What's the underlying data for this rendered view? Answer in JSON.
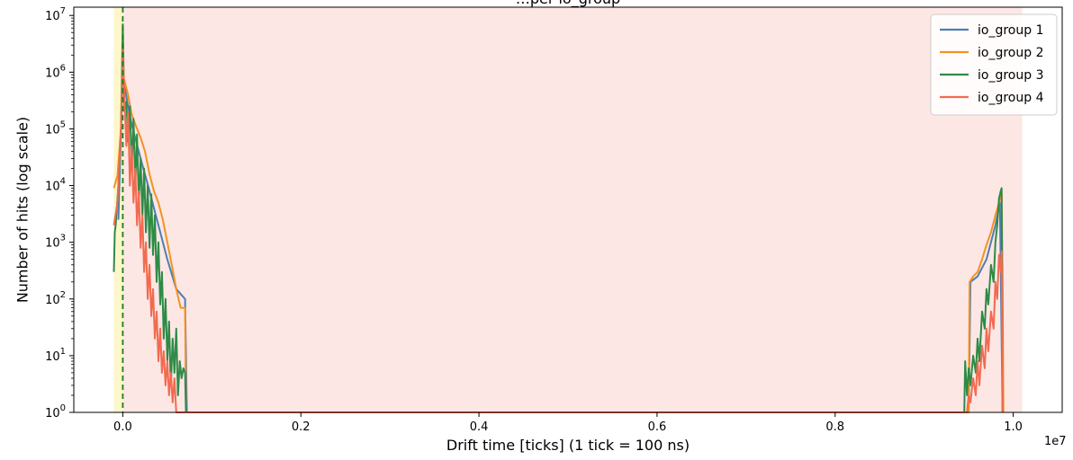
{
  "chart_data": {
    "type": "line",
    "title": "…per io_group",
    "xlabel": "Drift time  [ticks]   (1 tick = 100 ns)",
    "ylabel": "Number of hits  (log scale)",
    "x_offset_label": "1e7",
    "x_scale": "linear",
    "y_scale": "log",
    "xlim": [
      -550000,
      10550000
    ],
    "ylim": [
      1,
      14000000
    ],
    "x_ticks": [
      0,
      2000000,
      4000000,
      6000000,
      8000000,
      10000000
    ],
    "x_tick_labels": [
      "0.0",
      "0.2",
      "0.4",
      "0.6",
      "0.8",
      "1.0"
    ],
    "y_ticks": [
      1,
      10,
      100,
      1000,
      10000,
      100000,
      1000000,
      10000000
    ],
    "y_tick_labels": [
      {
        "base": "10",
        "exp": "0"
      },
      {
        "base": "10",
        "exp": "1"
      },
      {
        "base": "10",
        "exp": "2"
      },
      {
        "base": "10",
        "exp": "3"
      },
      {
        "base": "10",
        "exp": "4"
      },
      {
        "base": "10",
        "exp": "5"
      },
      {
        "base": "10",
        "exp": "6"
      },
      {
        "base": "10",
        "exp": "7"
      }
    ],
    "grid": false,
    "legend_position": "top-right",
    "shaded_regions": [
      {
        "x0": -550000,
        "x1": -100000,
        "color": "#ffffff"
      },
      {
        "x0": -100000,
        "x1": 0,
        "color": "#fdf6c8"
      },
      {
        "x0": 0,
        "x1": 10100000,
        "color": "#fde7e5"
      }
    ],
    "vertical_line": {
      "x": 0,
      "color": "#1e7d1e",
      "style": "dashed"
    },
    "series": [
      {
        "name": "io_group 1",
        "color": "#4c7fb3",
        "points": [
          [
            -50000,
            2500
          ],
          [
            0,
            900000
          ],
          [
            50000,
            300000
          ],
          [
            100000,
            120000
          ],
          [
            150000,
            60000
          ],
          [
            200000,
            30000
          ],
          [
            300000,
            8000
          ],
          [
            400000,
            2000
          ],
          [
            500000,
            500
          ],
          [
            600000,
            150
          ],
          [
            700000,
            100
          ],
          [
            720000,
            1
          ],
          [
            9500000,
            1
          ],
          [
            9520000,
            200
          ],
          [
            9600000,
            250
          ],
          [
            9700000,
            500
          ],
          [
            9800000,
            2000
          ],
          [
            9850000,
            5000
          ],
          [
            9880000,
            1
          ],
          [
            9880000,
            1
          ]
        ]
      },
      {
        "name": "io_group 2",
        "color": "#f39222",
        "points": [
          [
            -100000,
            9000
          ],
          [
            -60000,
            15000
          ],
          [
            -20000,
            100000
          ],
          [
            0,
            900000
          ],
          [
            20000,
            700000
          ],
          [
            60000,
            400000
          ],
          [
            100000,
            180000
          ],
          [
            140000,
            120000
          ],
          [
            200000,
            70000
          ],
          [
            250000,
            40000
          ],
          [
            300000,
            16000
          ],
          [
            350000,
            8000
          ],
          [
            400000,
            5000
          ],
          [
            450000,
            2500
          ],
          [
            500000,
            1000
          ],
          [
            550000,
            400
          ],
          [
            600000,
            150
          ],
          [
            650000,
            70
          ],
          [
            700000,
            70
          ],
          [
            710000,
            1
          ],
          [
            9500000,
            1
          ],
          [
            9510000,
            200
          ],
          [
            9550000,
            250
          ],
          [
            9600000,
            300
          ],
          [
            9650000,
            500
          ],
          [
            9700000,
            900
          ],
          [
            9750000,
            1500
          ],
          [
            9800000,
            3000
          ],
          [
            9840000,
            5000
          ],
          [
            9870000,
            8000
          ],
          [
            9880000,
            300
          ],
          [
            9890000,
            1
          ]
        ]
      },
      {
        "name": "io_group 3",
        "color": "#2e8b47",
        "points": [
          [
            -100000,
            300
          ],
          [
            -90000,
            1500
          ],
          [
            -80000,
            2000
          ],
          [
            -50000,
            10000
          ],
          [
            -20000,
            100000
          ],
          [
            0,
            7000000
          ],
          [
            10000,
            900000
          ],
          [
            20000,
            200000
          ],
          [
            40000,
            300000
          ],
          [
            60000,
            60000
          ],
          [
            80000,
            250000
          ],
          [
            100000,
            20000
          ],
          [
            120000,
            150000
          ],
          [
            140000,
            10000
          ],
          [
            160000,
            80000
          ],
          [
            180000,
            5000
          ],
          [
            200000,
            30000
          ],
          [
            220000,
            3000
          ],
          [
            240000,
            20000
          ],
          [
            260000,
            1500
          ],
          [
            280000,
            10000
          ],
          [
            300000,
            800
          ],
          [
            320000,
            7000
          ],
          [
            340000,
            600
          ],
          [
            360000,
            3000
          ],
          [
            380000,
            200
          ],
          [
            400000,
            1000
          ],
          [
            420000,
            80
          ],
          [
            440000,
            300
          ],
          [
            460000,
            20
          ],
          [
            480000,
            100
          ],
          [
            500000,
            8
          ],
          [
            520000,
            40
          ],
          [
            540000,
            3
          ],
          [
            560000,
            20
          ],
          [
            580000,
            5
          ],
          [
            600000,
            30
          ],
          [
            620000,
            2
          ],
          [
            640000,
            8
          ],
          [
            660000,
            4
          ],
          [
            680000,
            6
          ],
          [
            700000,
            5
          ],
          [
            710000,
            1
          ],
          [
            9450000,
            1
          ],
          [
            9460000,
            8
          ],
          [
            9480000,
            2
          ],
          [
            9500000,
            6
          ],
          [
            9520000,
            3
          ],
          [
            9550000,
            10
          ],
          [
            9580000,
            5
          ],
          [
            9600000,
            20
          ],
          [
            9620000,
            8
          ],
          [
            9650000,
            60
          ],
          [
            9680000,
            30
          ],
          [
            9700000,
            150
          ],
          [
            9720000,
            80
          ],
          [
            9750000,
            400
          ],
          [
            9780000,
            200
          ],
          [
            9800000,
            1000
          ],
          [
            9820000,
            2000
          ],
          [
            9840000,
            6000
          ],
          [
            9860000,
            8000
          ],
          [
            9870000,
            9000
          ],
          [
            9875000,
            300
          ],
          [
            9880000,
            1
          ]
        ]
      },
      {
        "name": "io_group 4",
        "color": "#f26b50",
        "points": [
          [
            -100000,
            2000
          ],
          [
            -60000,
            5000
          ],
          [
            -20000,
            100000
          ],
          [
            0,
            2500000
          ],
          [
            20000,
            300000
          ],
          [
            40000,
            50000
          ],
          [
            60000,
            200000
          ],
          [
            80000,
            10000
          ],
          [
            100000,
            50000
          ],
          [
            120000,
            5000
          ],
          [
            140000,
            20000
          ],
          [
            160000,
            2000
          ],
          [
            180000,
            8000
          ],
          [
            200000,
            800
          ],
          [
            220000,
            3000
          ],
          [
            240000,
            300
          ],
          [
            260000,
            1000
          ],
          [
            280000,
            100
          ],
          [
            300000,
            400
          ],
          [
            320000,
            50
          ],
          [
            340000,
            150
          ],
          [
            360000,
            20
          ],
          [
            380000,
            60
          ],
          [
            400000,
            8
          ],
          [
            420000,
            30
          ],
          [
            440000,
            5
          ],
          [
            460000,
            12
          ],
          [
            480000,
            3
          ],
          [
            500000,
            8
          ],
          [
            520000,
            2
          ],
          [
            540000,
            5
          ],
          [
            560000,
            1.5
          ],
          [
            580000,
            4
          ],
          [
            600000,
            1
          ],
          [
            610000,
            1
          ],
          [
            9480000,
            1
          ],
          [
            9500000,
            2
          ],
          [
            9520000,
            1.5
          ],
          [
            9550000,
            4
          ],
          [
            9580000,
            2
          ],
          [
            9600000,
            8
          ],
          [
            9620000,
            3
          ],
          [
            9650000,
            15
          ],
          [
            9680000,
            6
          ],
          [
            9700000,
            30
          ],
          [
            9720000,
            12
          ],
          [
            9750000,
            60
          ],
          [
            9780000,
            30
          ],
          [
            9800000,
            200
          ],
          [
            9820000,
            100
          ],
          [
            9840000,
            600
          ],
          [
            9860000,
            300
          ],
          [
            9870000,
            700
          ],
          [
            9880000,
            1
          ]
        ]
      }
    ]
  }
}
